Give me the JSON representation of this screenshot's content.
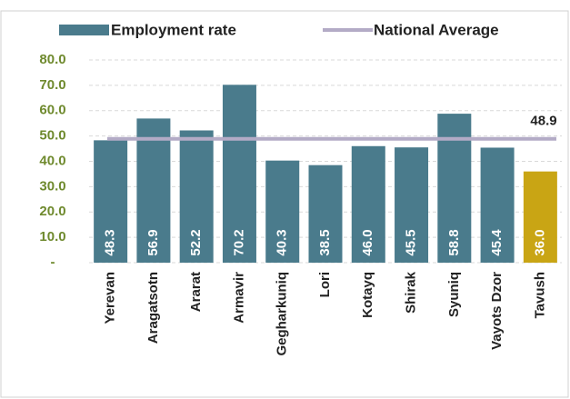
{
  "chart_data": {
    "type": "bar",
    "categories": [
      "Yerevan",
      "Aragatsotn",
      "Ararat",
      "Armavir",
      "Gegharkuniq",
      "Lori",
      "Kotayq",
      "Shirak",
      "Syuniq",
      "Vayots Dzor",
      "Tavush"
    ],
    "series": [
      {
        "name": "Employment rate",
        "color": "#4a7b8c",
        "colors": [
          "#4a7b8c",
          "#4a7b8c",
          "#4a7b8c",
          "#4a7b8c",
          "#4a7b8c",
          "#4a7b8c",
          "#4a7b8c",
          "#4a7b8c",
          "#4a7b8c",
          "#4a7b8c",
          "#c9a514"
        ],
        "values": [
          48.3,
          56.9,
          52.2,
          70.2,
          40.3,
          38.5,
          46.0,
          45.5,
          58.8,
          45.4,
          36.0
        ],
        "value_labels": [
          "48.3",
          "56.9",
          "52.2",
          "70.2",
          "40.3",
          "38.5",
          "46.0",
          "45.5",
          "58.8",
          "45.4",
          "36.0"
        ]
      }
    ],
    "average": {
      "name": "National Average",
      "color": "#b3abc6",
      "value": 48.9
    },
    "ylim": [
      0,
      80
    ],
    "yticks": [
      {
        "value": 0,
        "label": "-"
      },
      {
        "value": 10,
        "label": "10.0"
      },
      {
        "value": 20,
        "label": "20.0"
      },
      {
        "value": 30,
        "label": "30.0"
      },
      {
        "value": 40,
        "label": "40.0"
      },
      {
        "value": 50,
        "label": "50.0"
      },
      {
        "value": 60,
        "label": "60.0"
      },
      {
        "value": 70,
        "label": "70.0"
      },
      {
        "value": 80,
        "label": "80.0"
      }
    ],
    "grid": true
  }
}
